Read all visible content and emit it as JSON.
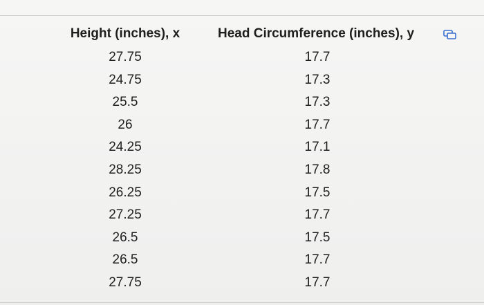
{
  "table": {
    "headers": [
      "Height (inches), x",
      "Head Circumference (inches), y"
    ],
    "rows": [
      [
        "27.75",
        "17.7"
      ],
      [
        "24.75",
        "17.3"
      ],
      [
        "25.5",
        "17.3"
      ],
      [
        "26",
        "17.7"
      ],
      [
        "24.25",
        "17.1"
      ],
      [
        "28.25",
        "17.8"
      ],
      [
        "26.25",
        "17.5"
      ],
      [
        "27.25",
        "17.7"
      ],
      [
        "26.5",
        "17.5"
      ],
      [
        "26.5",
        "17.7"
      ],
      [
        "27.75",
        "17.7"
      ]
    ]
  }
}
